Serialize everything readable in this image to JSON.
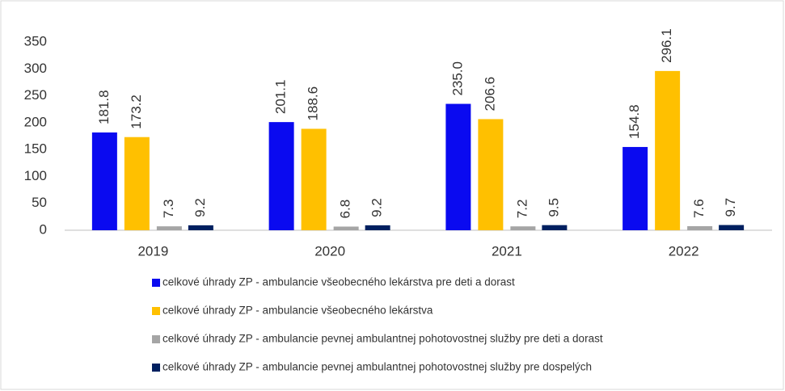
{
  "chart_data": {
    "type": "bar",
    "categories": [
      "2019",
      "2020",
      "2021",
      "2022"
    ],
    "series": [
      {
        "name": "celkové úhrady ZP - ambulancie všeobecného lekárstva pre deti a dorast",
        "color": "#0a0af0",
        "values": [
          181.8,
          201.1,
          235.0,
          154.8
        ],
        "value_labels": [
          "181.8",
          "201.1",
          "235.0",
          "154.8"
        ]
      },
      {
        "name": "celkové úhrady ZP - ambulancie všeobecného lekárstva",
        "color": "#ffc000",
        "values": [
          173.2,
          188.6,
          206.6,
          296.1
        ],
        "value_labels": [
          "173.2",
          "188.6",
          "206.6",
          "296.1"
        ]
      },
      {
        "name": "celkové úhrady ZP - ambulancie pevnej ambulantnej pohotovostnej služby pre deti a dorast",
        "color": "#a5a5a5",
        "values": [
          7.3,
          6.8,
          7.2,
          7.6
        ],
        "value_labels": [
          "7.3",
          "6.8",
          "7.2",
          "7.6"
        ]
      },
      {
        "name": "celkové úhrady ZP - ambulancie pevnej ambulantnej pohotovostnej služby pre dospelých",
        "color": "#002060",
        "values": [
          9.2,
          9.2,
          9.5,
          9.7
        ],
        "value_labels": [
          "9.2",
          "9.2",
          "9.5",
          "9.7"
        ]
      }
    ],
    "ylim": [
      0,
      350
    ],
    "yticks": [
      0,
      50,
      100,
      150,
      200,
      250,
      300,
      350
    ],
    "grid": false,
    "legend": "bottom"
  }
}
